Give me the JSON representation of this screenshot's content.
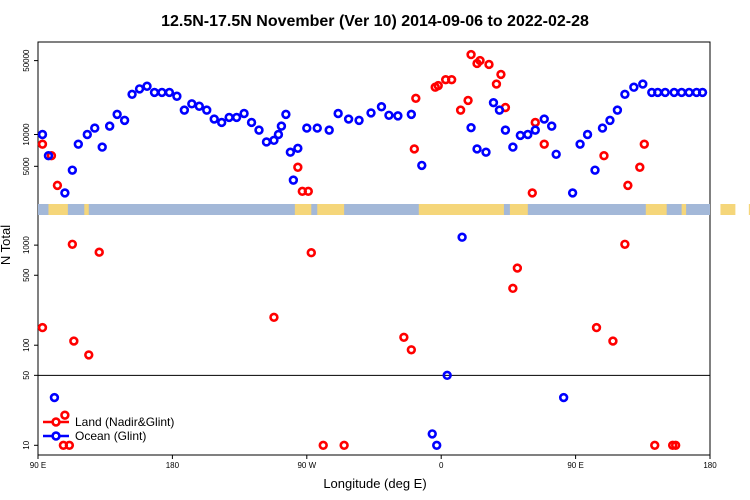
{
  "chart_data": {
    "type": "scatter",
    "title": "12.5N-17.5N November (Ver 10)   2014-09-06 to 2022-02-28",
    "xlabel": "Longitude (deg E)",
    "ylabel": "N Total",
    "x_ticks": [
      {
        "value": 90,
        "label": "90 E"
      },
      {
        "value": 180,
        "label": "180"
      },
      {
        "value": 270,
        "label": "90 W"
      },
      {
        "value": 360,
        "label": "0"
      },
      {
        "value": 450,
        "label": "90 E"
      },
      {
        "value": 540,
        "label": "180"
      }
    ],
    "xlim": [
      90,
      540
    ],
    "y_scale": "log",
    "upper_panel": {
      "ylim": [
        2200,
        75000
      ],
      "y_ticks": [
        5000,
        10000,
        50000
      ]
    },
    "lower_panel": {
      "ylim": [
        8,
        2000
      ],
      "y_ticks": [
        10,
        50,
        100,
        500,
        1000
      ],
      "reference_line": 50
    },
    "legend": {
      "position": "bottom-left"
    },
    "colors": {
      "land": "#ff0000",
      "ocean": "#0000ff",
      "strip_ocean": "#a3b8d8",
      "strip_land": "#f5d67a"
    },
    "land_strip_segments": [
      [
        97,
        110
      ],
      [
        121,
        124
      ],
      [
        262,
        273
      ],
      [
        277,
        295
      ],
      [
        345,
        402
      ],
      [
        406,
        418
      ],
      [
        497,
        511
      ],
      [
        521,
        524
      ],
      [
        547,
        557
      ],
      [
        566,
        568
      ]
    ],
    "series": [
      {
        "name": "Land (Nadir&Glint)",
        "x": [
          93,
          99,
          103,
          107,
          113,
          114,
          93,
          108,
          111,
          124,
          131,
          248,
          264,
          267,
          271,
          273,
          281,
          295,
          335,
          340,
          342,
          343,
          356,
          358,
          363,
          367,
          373,
          378,
          380,
          384,
          386,
          392,
          397,
          400,
          403,
          408,
          411,
          421,
          423,
          429,
          464,
          469,
          475,
          483,
          485,
          493,
          496,
          503,
          515,
          517
        ],
        "y": [
          8100,
          6300,
          3300,
          10,
          1020,
          110,
          150,
          20,
          10,
          80,
          850,
          190,
          4900,
          2900,
          2900,
          840,
          10,
          10,
          120,
          90,
          7300,
          22000,
          28000,
          29000,
          33000,
          33000,
          17000,
          21000,
          57000,
          47000,
          50000,
          46000,
          30000,
          37000,
          18000,
          370,
          590,
          2800,
          13000,
          8100,
          150,
          6300,
          110,
          1020,
          3300,
          4900,
          8100,
          10,
          10,
          10
        ],
        "note": "-"
      },
      {
        "name": "Ocean (Glint)",
        "x": [
          93,
          97,
          101,
          108,
          113,
          117,
          123,
          128,
          133,
          138,
          143,
          148,
          153,
          158,
          163,
          168,
          173,
          178,
          183,
          188,
          193,
          198,
          203,
          208,
          213,
          218,
          223,
          228,
          233,
          238,
          243,
          248,
          251,
          253,
          256,
          259,
          261,
          264,
          270,
          277,
          285,
          291,
          298,
          305,
          313,
          320,
          325,
          331,
          340,
          347,
          354,
          357,
          364,
          374,
          380,
          384,
          390,
          395,
          399,
          403,
          408,
          413,
          418,
          423,
          429,
          434,
          437,
          442,
          448,
          453,
          458,
          463,
          468,
          473,
          478,
          483,
          489,
          495,
          501,
          505,
          510,
          516,
          521,
          526,
          531,
          535
        ],
        "y": [
          10000,
          6300,
          30,
          2800,
          4600,
          8100,
          10000,
          11500,
          7600,
          12000,
          15500,
          13600,
          24000,
          27000,
          28600,
          25000,
          25000,
          25000,
          23000,
          17000,
          19500,
          18500,
          17000,
          14000,
          13000,
          14500,
          14500,
          15800,
          13000,
          11000,
          8500,
          8800,
          10000,
          12000,
          15500,
          6800,
          3700,
          7400,
          11500,
          11500,
          11000,
          15800,
          14000,
          13600,
          16000,
          18300,
          15200,
          15000,
          15500,
          5100,
          13,
          10,
          50,
          1200,
          11600,
          7300,
          6800,
          20000,
          17000,
          11000,
          7600,
          9800,
          10000,
          11000,
          14000,
          12000,
          6500,
          30,
          2800,
          8100,
          10000,
          4600,
          11500,
          13600,
          17000,
          24000,
          28000,
          30000,
          25000,
          25000,
          25000,
          25000,
          25000,
          25000,
          25000,
          25000
        ],
        "note": "-"
      }
    ]
  }
}
